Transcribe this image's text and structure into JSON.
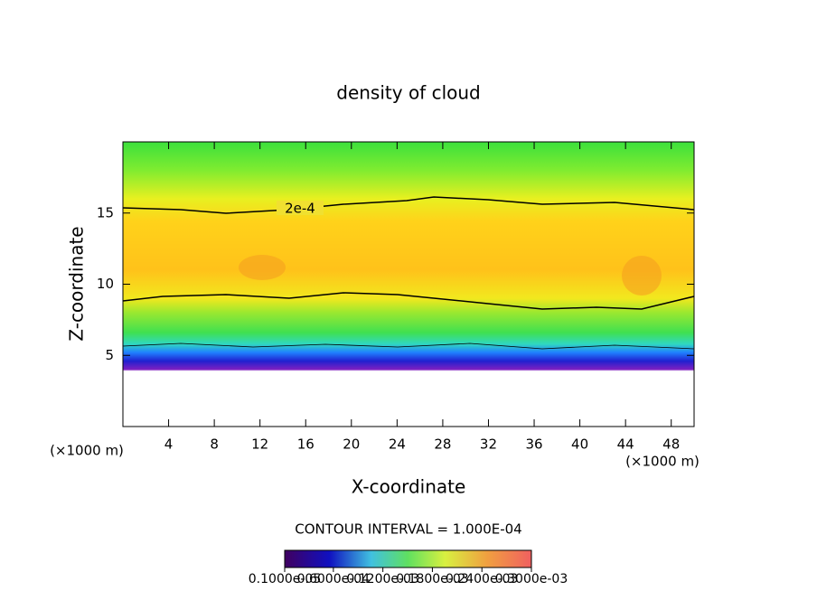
{
  "chart_data": {
    "type": "contour",
    "title": "density of cloud",
    "x_label": "X-coordinate",
    "y_label": "Z-coordinate",
    "x_unit": "(×1000 m)",
    "y_unit": "(×1000 m)",
    "contour_label": "2e-4",
    "contour_interval": "CONTOUR INTERVAL = 1.000E-04",
    "xlim": [
      0,
      50
    ],
    "xticks": [
      4,
      8,
      12,
      16,
      20,
      24,
      28,
      32,
      36,
      40,
      44,
      48
    ],
    "ylim": [
      0,
      20
    ],
    "yticks": [
      5,
      10,
      15
    ],
    "colorbar_lim": [
      1e-06,
      0.0003
    ],
    "colorbar_ticks": [
      {
        "value": 1e-06,
        "label": "0.1000e-05"
      },
      {
        "value": 6e-05,
        "label": "0.6000e-04"
      },
      {
        "value": 0.00012,
        "label": "0.1200e-03"
      },
      {
        "value": 0.00018,
        "label": "0.1800e-03"
      },
      {
        "value": 0.00024,
        "label": "0.2400e-03"
      },
      {
        "value": 0.0003,
        "label": "0.3000e-03"
      }
    ]
  }
}
